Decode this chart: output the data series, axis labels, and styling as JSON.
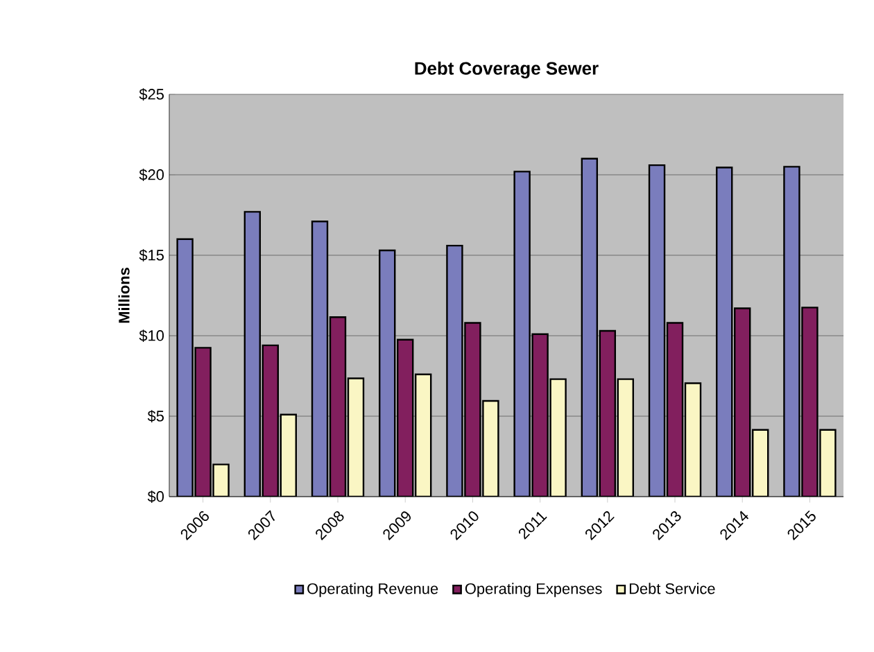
{
  "chart_data": {
    "type": "bar",
    "title": "Debt Coverage Sewer",
    "ylabel": "Millions",
    "categories": [
      "2006",
      "2007",
      "2008",
      "2009",
      "2010",
      "2011",
      "2012",
      "2013",
      "2014",
      "2015"
    ],
    "series": [
      {
        "name": "Operating Revenue",
        "color": "#7a7dbd",
        "values": [
          16.0,
          17.7,
          17.1,
          15.3,
          15.6,
          20.2,
          21.0,
          20.6,
          20.45,
          20.5
        ]
      },
      {
        "name": "Operating Expenses",
        "color": "#821f5e",
        "values": [
          9.25,
          9.4,
          11.15,
          9.75,
          10.8,
          10.1,
          10.3,
          10.8,
          11.7,
          11.75
        ]
      },
      {
        "name": "Debt Service",
        "color": "#faf6c4",
        "values": [
          2.0,
          5.1,
          7.35,
          7.6,
          5.95,
          7.3,
          7.3,
          7.05,
          4.15,
          4.15
        ]
      }
    ],
    "ylim": [
      0,
      25
    ],
    "yticks": [
      {
        "value": 0,
        "label": "$0"
      },
      {
        "value": 5,
        "label": "$5"
      },
      {
        "value": 10,
        "label": "$10"
      },
      {
        "value": 15,
        "label": "$15"
      },
      {
        "value": 20,
        "label": "$20"
      },
      {
        "value": 25,
        "label": "$25"
      }
    ],
    "grid": "y",
    "legend": "bottom"
  }
}
